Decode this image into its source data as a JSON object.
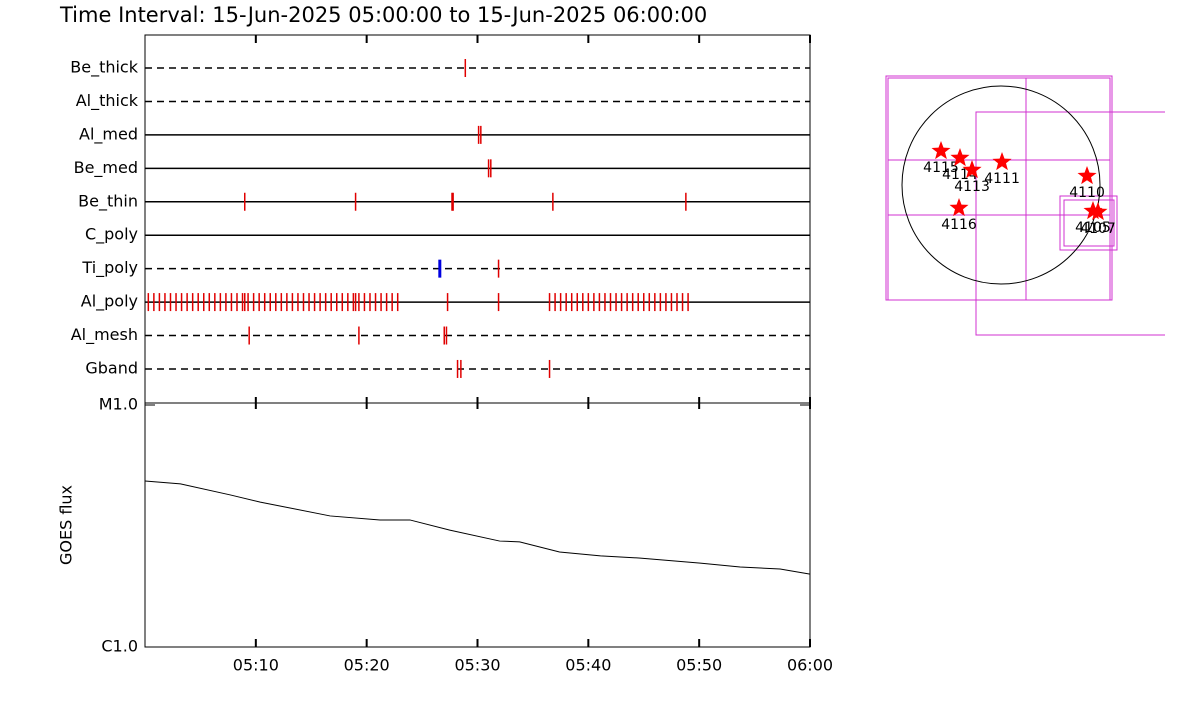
{
  "chart_data": [
    {
      "type": "timeline",
      "title": "Time Interval: 15-Jun-2025 05:00:00 to 15-Jun-2025 06:00:00",
      "xlim": [
        0,
        60
      ],
      "xticks": [
        {
          "value": 10,
          "label": "05:10"
        },
        {
          "value": 20,
          "label": "05:20"
        },
        {
          "value": 30,
          "label": "05:30"
        },
        {
          "value": 40,
          "label": "05:40"
        },
        {
          "value": 50,
          "label": "05:50"
        },
        {
          "value": 60,
          "label": "06:00"
        }
      ],
      "rows": [
        {
          "name": "Be_thick",
          "line": "dashed",
          "series": [
            {
              "color": "#e00000",
              "values": [
                28.9
              ]
            }
          ]
        },
        {
          "name": "Al_thick",
          "line": "dashed",
          "series": [
            {
              "color": "#e00000",
              "values": []
            }
          ]
        },
        {
          "name": "Al_med",
          "line": "solid",
          "series": [
            {
              "color": "#e00000",
              "values": [
                30.1,
                30.3
              ]
            }
          ]
        },
        {
          "name": "Be_med",
          "line": "solid",
          "series": [
            {
              "color": "#e00000",
              "values": [
                31.0,
                31.2
              ]
            }
          ]
        },
        {
          "name": "Be_thin",
          "line": "solid",
          "series": [
            {
              "color": "#e00000",
              "values": [
                9.0,
                19.0,
                27.7,
                27.8,
                36.8,
                48.8
              ]
            }
          ]
        },
        {
          "name": "C_poly",
          "line": "solid",
          "series": [
            {
              "color": "#e00000",
              "values": []
            }
          ]
        },
        {
          "name": "Ti_poly",
          "line": "dashed",
          "series": [
            {
              "color": "#e00000",
              "values": [
                31.9
              ]
            },
            {
              "color": "#0000e0",
              "values": [
                26.6
              ]
            }
          ]
        },
        {
          "name": "Al_poly",
          "line": "solid",
          "series": [
            {
              "color": "#e00000",
              "values": [
                0.3,
                0.8,
                1.3,
                1.8,
                2.3,
                2.8,
                3.3,
                3.8,
                4.3,
                4.8,
                5.3,
                5.8,
                6.3,
                6.8,
                7.3,
                7.8,
                8.3,
                8.8,
                9.0,
                9.3,
                9.8,
                10.3,
                10.8,
                11.3,
                11.8,
                12.3,
                12.8,
                13.3,
                13.8,
                14.3,
                14.8,
                15.3,
                15.8,
                16.3,
                16.8,
                17.3,
                17.8,
                18.3,
                18.8,
                19.0,
                19.3,
                19.8,
                20.3,
                20.8,
                21.3,
                21.8,
                22.3,
                22.8,
                27.3,
                31.9,
                36.5,
                37.0,
                37.5,
                38.0,
                38.5,
                39.0,
                39.5,
                40.0,
                40.5,
                41.0,
                41.5,
                42.0,
                42.5,
                43.0,
                43.5,
                44.0,
                44.5,
                45.0,
                45.5,
                46.0,
                46.5,
                47.0,
                47.5,
                48.0,
                48.5,
                49.0
              ]
            }
          ]
        },
        {
          "name": "Al_mesh",
          "line": "dashed",
          "series": [
            {
              "color": "#e00000",
              "values": [
                9.4,
                19.3,
                27.0,
                27.2
              ]
            }
          ]
        },
        {
          "name": "Gband",
          "line": "dashed",
          "series": [
            {
              "color": "#e00000",
              "values": [
                28.2,
                28.5,
                36.5
              ]
            }
          ]
        }
      ]
    },
    {
      "type": "line",
      "ylabel": "GOES flux",
      "log_scale": true,
      "xlim": [
        0,
        60
      ],
      "ylim": [
        1e-06,
        1e-05
      ],
      "yticks": [
        {
          "value": 1e-06,
          "label": "C1.0"
        },
        {
          "value": 1e-05,
          "label": "M1.0"
        }
      ],
      "color": "#000000",
      "x": [
        0,
        3.2,
        7.7,
        10.4,
        16.7,
        21.2,
        23.9,
        27.5,
        32.0,
        33.8,
        37.4,
        41.1,
        44.7,
        50.1,
        53.7,
        57.3,
        60
      ],
      "values": [
        4.85e-06,
        4.72e-06,
        4.25e-06,
        3.97e-06,
        3.48e-06,
        3.35e-06,
        3.35e-06,
        3.04e-06,
        2.74e-06,
        2.72e-06,
        2.47e-06,
        2.38e-06,
        2.33e-06,
        2.22e-06,
        2.14e-06,
        2.1e-06,
        2e-06
      ]
    },
    {
      "type": "map",
      "color": "#ff0000",
      "labels": [
        "4115",
        "4114",
        "4113",
        "4111",
        "4110",
        "4116",
        "4105",
        "4107"
      ],
      "x": [
        -576,
        -394,
        -278,
        10,
        826,
        -403,
        883,
        931
      ],
      "y": [
        326,
        259,
        144,
        221,
        86,
        -221,
        -250,
        -259
      ]
    }
  ]
}
